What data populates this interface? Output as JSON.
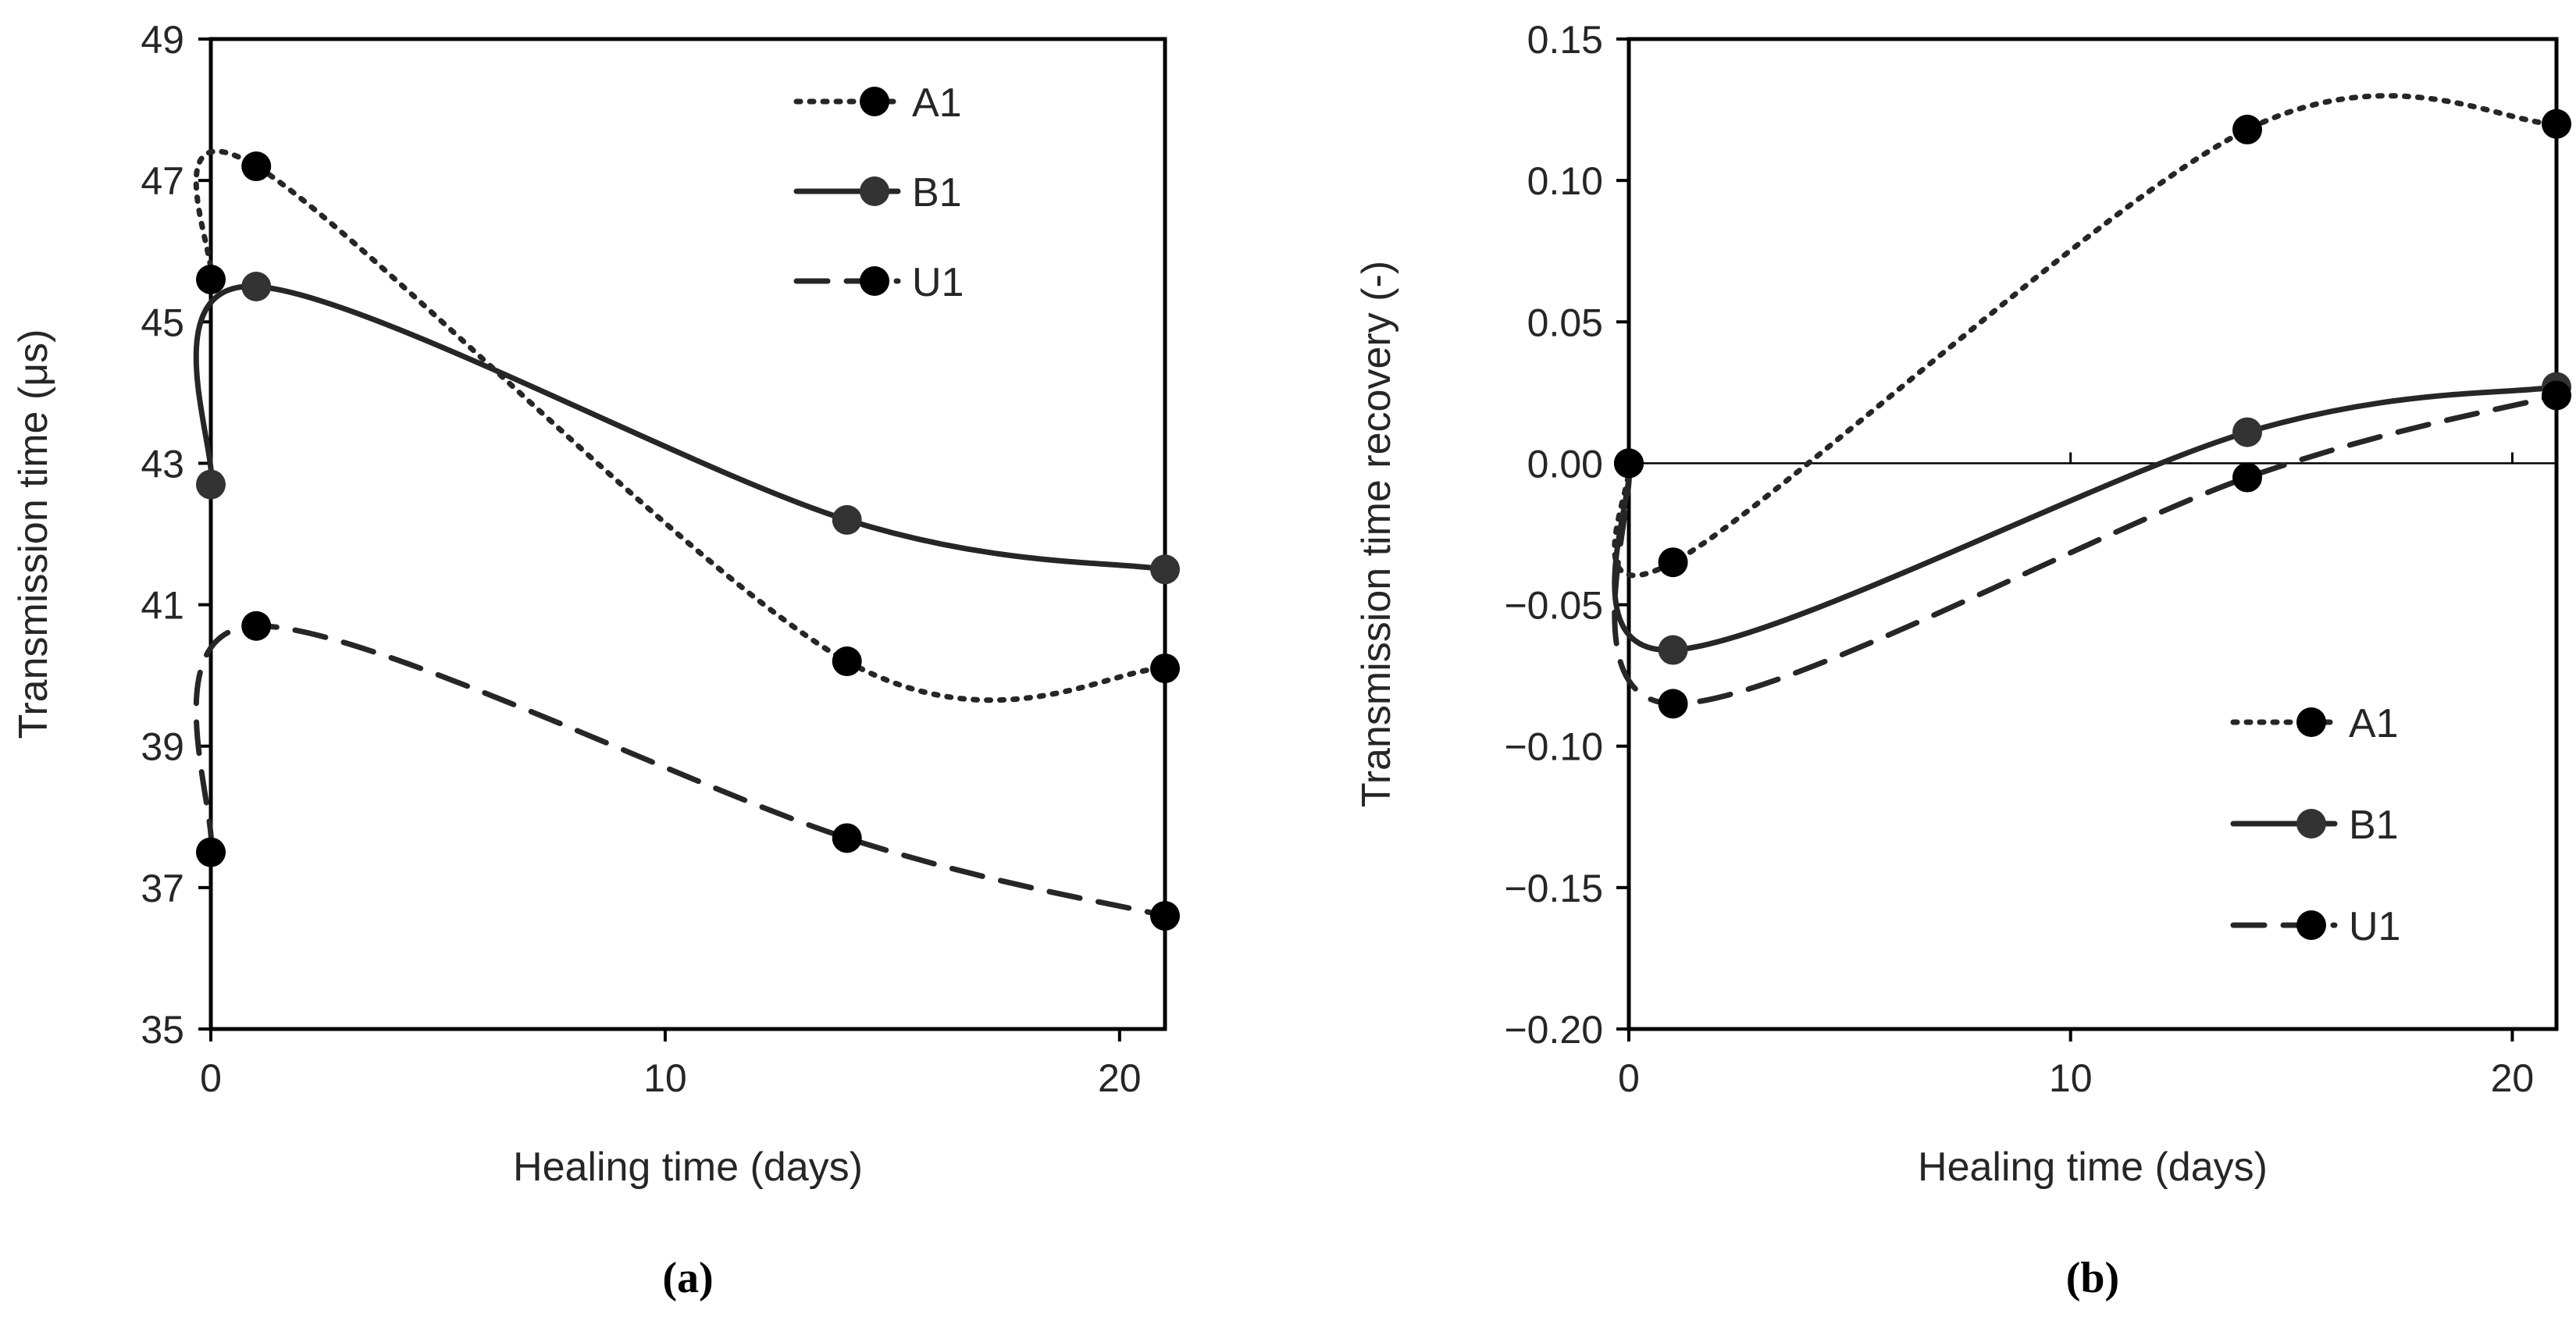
{
  "chart_data": [
    {
      "type": "line",
      "panel_label": "(a)",
      "xlabel": "Healing time (days)",
      "ylabel": "Transmission time (μs)",
      "xlim": [
        0,
        21
      ],
      "ylim": [
        35,
        49
      ],
      "xticks": [
        0,
        10,
        20
      ],
      "xtick_labels": [
        "0",
        "10",
        "20"
      ],
      "yticks": [
        35,
        37,
        39,
        41,
        43,
        45,
        47,
        49
      ],
      "ytick_labels": [
        "35",
        "37",
        "39",
        "41",
        "43",
        "45",
        "47",
        "49"
      ],
      "legend_position": "top-right",
      "x": [
        0,
        1,
        14,
        21
      ],
      "series": [
        {
          "name": "A1",
          "style": "dotted",
          "values": [
            45.6,
            47.2,
            40.2,
            40.1
          ]
        },
        {
          "name": "B1",
          "style": "solid",
          "values": [
            42.7,
            45.5,
            42.2,
            41.5
          ]
        },
        {
          "name": "U1",
          "style": "dashed",
          "values": [
            37.5,
            40.7,
            37.7,
            36.6
          ]
        }
      ]
    },
    {
      "type": "line",
      "panel_label": "(b)",
      "xlabel": "Healing time (days)",
      "ylabel": "Transmission time recovery (-)",
      "xlim": [
        0,
        21
      ],
      "ylim": [
        -0.2,
        0.15
      ],
      "xticks": [
        0,
        10,
        20
      ],
      "xtick_labels": [
        "0",
        "10",
        "20"
      ],
      "yticks": [
        -0.2,
        -0.15,
        -0.1,
        -0.05,
        0.0,
        0.05,
        0.1,
        0.15
      ],
      "ytick_labels": [
        "−0.20",
        "−0.15",
        "−0.10",
        "−0.05",
        "0.00",
        "0.05",
        "0.10",
        "0.15"
      ],
      "zero_line": true,
      "legend_position": "bottom-right",
      "x": [
        0,
        1,
        14,
        21
      ],
      "series": [
        {
          "name": "A1",
          "style": "dotted",
          "values": [
            0.0,
            -0.035,
            0.118,
            0.12
          ]
        },
        {
          "name": "B1",
          "style": "solid",
          "values": [
            0.0,
            -0.066,
            0.011,
            0.027
          ]
        },
        {
          "name": "U1",
          "style": "dashed",
          "values": [
            0.0,
            -0.085,
            -0.005,
            0.024
          ]
        }
      ]
    }
  ],
  "colors": {
    "axis": "#000000",
    "series_line": "#262626",
    "marker": "#000000",
    "text": "#262626"
  }
}
